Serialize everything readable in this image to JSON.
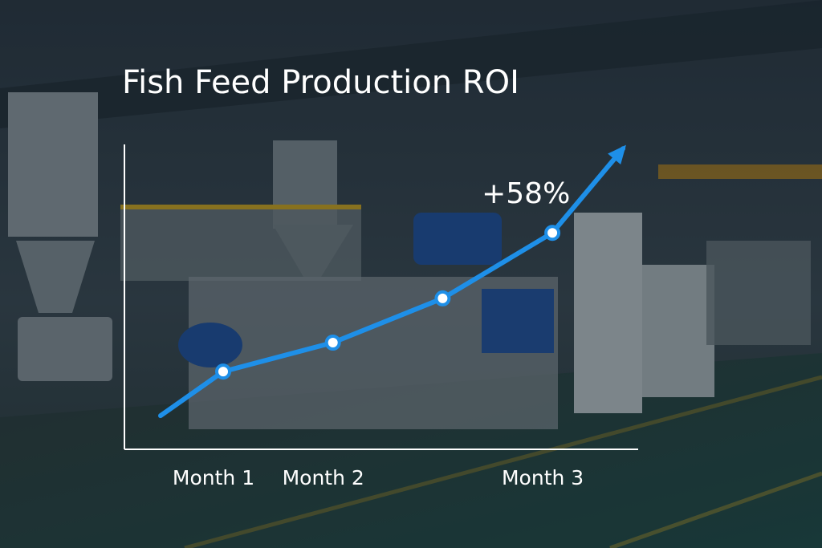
{
  "chart_data": {
    "type": "line",
    "title": "Fish Feed Production ROI",
    "categories": [
      "Month 1",
      "Month 2",
      null,
      "Month 3"
    ],
    "values": [
      25.5,
      35,
      49.5,
      71
    ],
    "color": "#1e8fe8",
    "ylim": [
      0,
      100
    ],
    "annotation": "+58%"
  }
}
